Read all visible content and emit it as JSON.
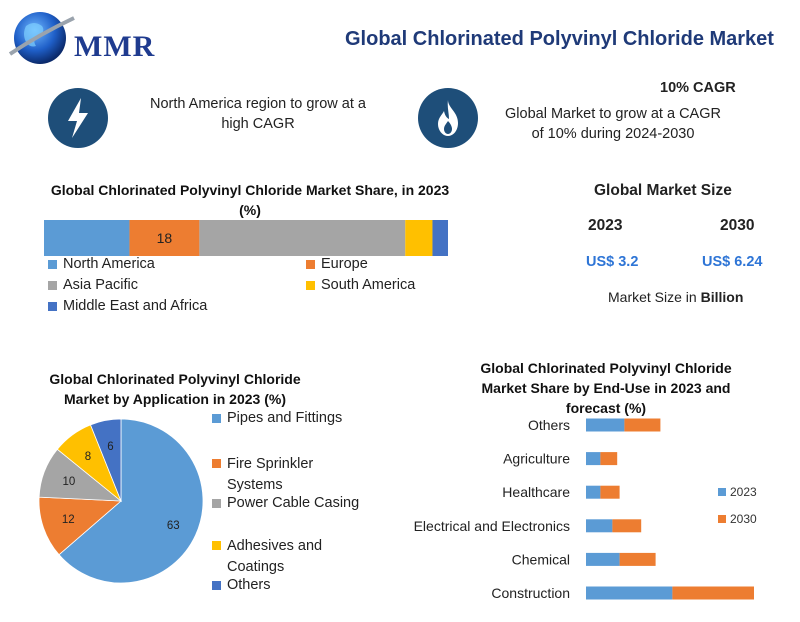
{
  "header": {
    "logo_text": "MMR",
    "title": "Global Chlorinated Polyvinyl Chloride Market"
  },
  "highlights": {
    "left_text": "North America region to grow at a high CAGR",
    "cagr_label": "10% CAGR",
    "right_text": "Global Market to grow at a CAGR of 10% during 2024-2030"
  },
  "market_size": {
    "title": "Global Market Size",
    "years": [
      "2023",
      "2030"
    ],
    "values": [
      "US$ 3.2",
      "US$ 6.24"
    ],
    "unit_prefix": "Market Size in",
    "unit_bold": "Billion"
  },
  "colors": {
    "north_america": "#5b9bd5",
    "europe": "#ed7d31",
    "asia_pacific": "#a5a5a5",
    "south_america": "#ffc000",
    "mea": "#4472c4",
    "series_2023": "#5b9bd5",
    "series_2030": "#ed7d31",
    "icon_bg": "#1e4e79"
  },
  "icons": {
    "left": "lightning-icon",
    "right": "flame-icon",
    "logo": "globe-icon"
  },
  "chart_data": [
    {
      "type": "bar",
      "orientation": "horizontal-stacked-100",
      "title": "Global Chlorinated Polyvinyl Chloride Market Share, in 2023 (%)",
      "series": [
        {
          "name": "North America",
          "value": 22,
          "label": ""
        },
        {
          "name": "Europe",
          "value": 18,
          "label": "18"
        },
        {
          "name": "Asia Pacific",
          "value": 53,
          "label": ""
        },
        {
          "name": "South America",
          "value": 7,
          "label": ""
        },
        {
          "name": "Middle East and Africa",
          "value": 4,
          "label": ""
        }
      ],
      "legend": "bottom",
      "legend_items": [
        "North America",
        "Europe",
        "Asia Pacific",
        "South America",
        "Middle East and Africa"
      ]
    },
    {
      "type": "pie",
      "title": "Global Chlorinated Polyvinyl Chloride Market by Application in 2023 (%)",
      "slices": [
        {
          "name": "Pipes and Fittings",
          "value": 63,
          "color": "#5b9bd5"
        },
        {
          "name": "Fire Sprinkler Systems",
          "value": 12,
          "color": "#ed7d31"
        },
        {
          "name": "Power Cable Casing",
          "value": 10,
          "color": "#a5a5a5"
        },
        {
          "name": "Adhesives and Coatings",
          "value": 8,
          "color": "#ffc000"
        },
        {
          "name": "Others",
          "value": 6,
          "color": "#4472c4"
        }
      ],
      "legend": "right"
    },
    {
      "type": "bar",
      "orientation": "horizontal-stacked",
      "title": "Global Chlorinated Polyvinyl Chloride Market Share by End-Use in 2023 and forecast (%)",
      "categories": [
        "Others",
        "Agriculture",
        "Healthcare",
        "Electrical and Electronics",
        "Chemical",
        "Construction"
      ],
      "series": [
        {
          "name": "2023",
          "values": [
            8,
            3,
            3,
            5.5,
            7,
            18
          ]
        },
        {
          "name": "2030",
          "values": [
            7.5,
            3.5,
            4,
            6,
            7.5,
            17
          ]
        }
      ],
      "xlim": [
        0,
        40
      ],
      "legend": "right"
    }
  ]
}
